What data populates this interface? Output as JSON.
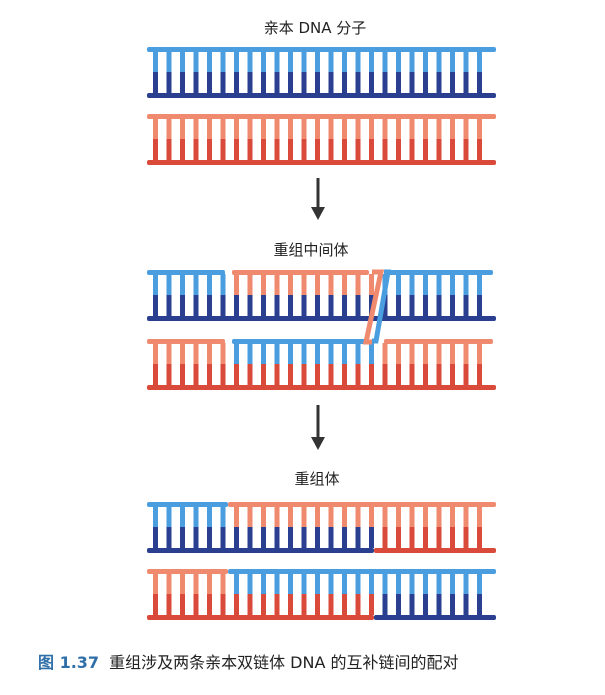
{
  "stages": [
    {
      "label": "亲本 DNA 分子"
    },
    {
      "label": "重组中间体"
    },
    {
      "label": "重组体"
    }
  ],
  "caption": {
    "figure_number": "图 1.37",
    "text": "重组涉及两条亲本双链体 DNA 的互补链间的配对"
  },
  "colors": {
    "blue_light": "#4a9ee0",
    "blue_dark": "#2a3f8f",
    "red_light": "#f08a6e",
    "red_dark": "#d94a3a",
    "arrow": "#333333"
  }
}
